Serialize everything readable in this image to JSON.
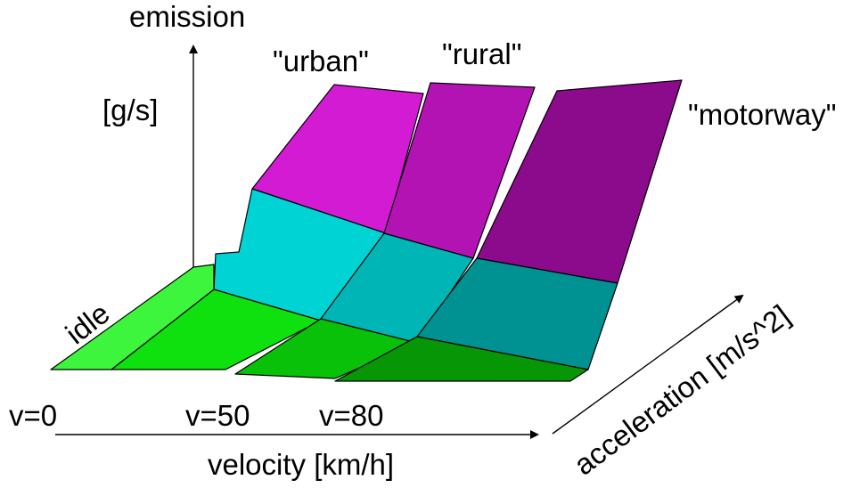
{
  "diagram": {
    "y_axis_title": "emission",
    "y_axis_unit": "[g/s]",
    "x_axis_title": "velocity [km/h]",
    "depth_axis_title": "acceleration [m/s^2]",
    "regions": [
      {
        "name": "\"urban\""
      },
      {
        "name": "\"rural\""
      },
      {
        "name": "\"motorway\""
      }
    ],
    "idle_label": "idle",
    "velocity_marks": [
      "v=0",
      "v=50",
      "v=80"
    ]
  },
  "colors": {
    "idle": "#3cf53c",
    "green": "#0ee10e",
    "green_mid": "#08c108",
    "green_dark": "#069606",
    "cyan": "#00d3d3",
    "cyan_mid": "#00b5b5",
    "teal": "#009292",
    "magenta": "#d41bd4",
    "magenta_mid": "#b413b4",
    "purple": "#8c0a8c"
  }
}
